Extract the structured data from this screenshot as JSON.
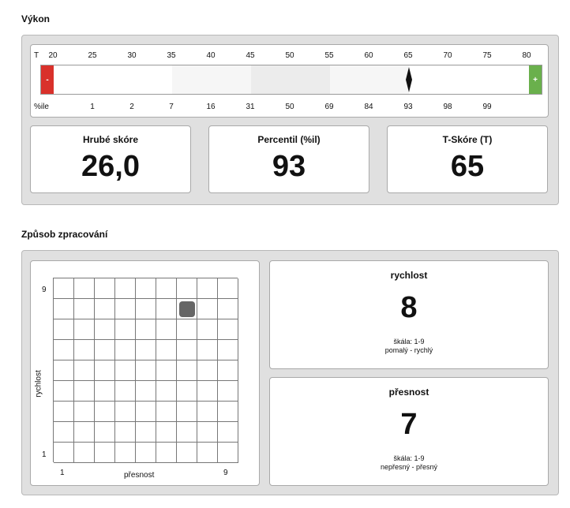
{
  "performance": {
    "title": "Výkon",
    "t_row_label": "T",
    "pct_row_label": "%ile",
    "t_ticks": [
      "20",
      "25",
      "30",
      "35",
      "40",
      "45",
      "50",
      "55",
      "60",
      "65",
      "70",
      "75",
      "80"
    ],
    "percentile_ticks": [
      "1",
      "2",
      "7",
      "16",
      "31",
      "50",
      "69",
      "84",
      "93",
      "98",
      "99"
    ],
    "low_end": "-",
    "high_end": "+",
    "marker_t": 65,
    "colors": {
      "low": "#d9312b",
      "high": "#6ab04c",
      "marker": "#111111"
    },
    "cards": [
      {
        "label": "Hrubé skóre",
        "value": "26,0"
      },
      {
        "label": "Percentil (%il)",
        "value": "93"
      },
      {
        "label": "T-Skóre (T)",
        "value": "65"
      }
    ]
  },
  "processing": {
    "title": "Způsob zpracování",
    "grid": {
      "y_label": "rychlost",
      "x_label": "přesnost",
      "y_min": "1",
      "y_max": "9",
      "x_min": "1",
      "x_max": "9",
      "point": {
        "accuracy": 7,
        "speed": 8
      }
    },
    "speed": {
      "title": "rychlost",
      "value": "8",
      "scale": "škála: 1-9",
      "range": "pomalý - rychlý"
    },
    "accuracy": {
      "title": "přesnost",
      "value": "7",
      "scale": "škála: 1-9",
      "range": "nepřesný - přesný"
    }
  }
}
